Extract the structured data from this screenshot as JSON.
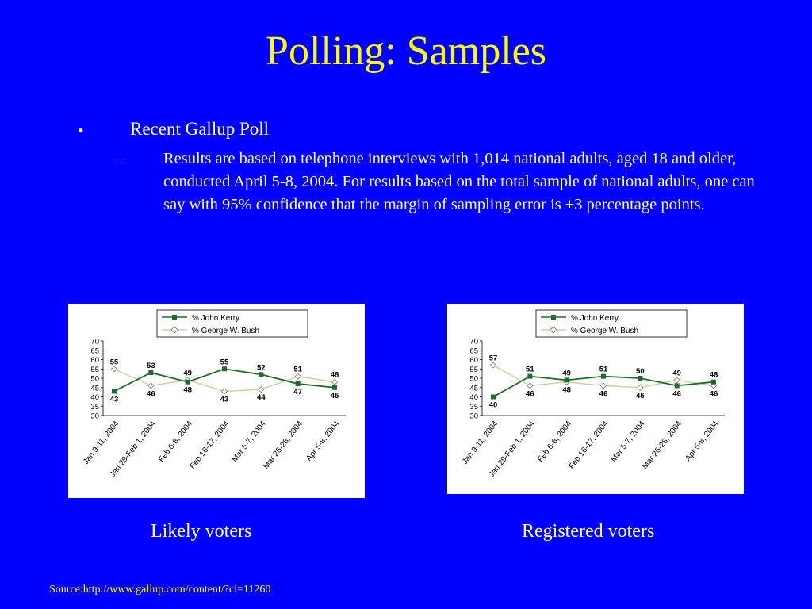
{
  "slide": {
    "title": "Polling: Samples",
    "bullet_marker": "•",
    "bullet": "Recent Gallup Poll",
    "dash_marker": "–",
    "paragraph": "Results are based on telephone interviews with 1,014 national adults, aged 18 and older, conducted April 5-8, 2004. For results based on the total sample of national adults, one can say with 95% confidence that the margin of sampling error is ±3 percentage points.",
    "caption_left": "Likely voters",
    "caption_right": "Registered voters",
    "source": "Source:http://www.gallup.com/content/?ci=11260"
  },
  "colors": {
    "background": "#0000ff",
    "title": "#ffff00",
    "kerry": "#1f6b2a",
    "bush": "#d4d0a0"
  },
  "chart_data": [
    {
      "type": "line",
      "categories": [
        "Jan 9-11, 2004",
        "Jan 29-Feb 1, 2004",
        "Feb 6-8, 2004",
        "Feb 16-17, 2004",
        "Mar 5-7, 2004",
        "Mar 26-28, 2004",
        "Apr 5-8, 2004"
      ],
      "series": [
        {
          "name": "% John Kerry",
          "values": [
            43,
            53,
            48,
            55,
            52,
            47,
            45
          ]
        },
        {
          "name": "% George W. Bush",
          "values": [
            55,
            46,
            49,
            43,
            44,
            51,
            48
          ]
        }
      ],
      "yticks": [
        30,
        35,
        40,
        45,
        50,
        55,
        60,
        65,
        70
      ],
      "ylim": [
        30,
        70
      ],
      "legend": "top"
    },
    {
      "type": "line",
      "categories": [
        "Jan 9-11, 2004",
        "Jan 29-Feb 1, 2004",
        "Feb 6-8, 2004",
        "Feb 16-17, 2004",
        "Mar 5-7, 2004",
        "Mar 26-28, 2004",
        "Apr 5-8, 2004"
      ],
      "series": [
        {
          "name": "% John Kerry",
          "values": [
            40,
            51,
            49,
            51,
            50,
            46,
            48
          ]
        },
        {
          "name": "% George W. Bush",
          "values": [
            57,
            46,
            48,
            46,
            45,
            49,
            46
          ]
        }
      ],
      "yticks": [
        30,
        35,
        40,
        45,
        50,
        55,
        60,
        65,
        70
      ],
      "ylim": [
        30,
        70
      ],
      "legend": "top"
    }
  ]
}
